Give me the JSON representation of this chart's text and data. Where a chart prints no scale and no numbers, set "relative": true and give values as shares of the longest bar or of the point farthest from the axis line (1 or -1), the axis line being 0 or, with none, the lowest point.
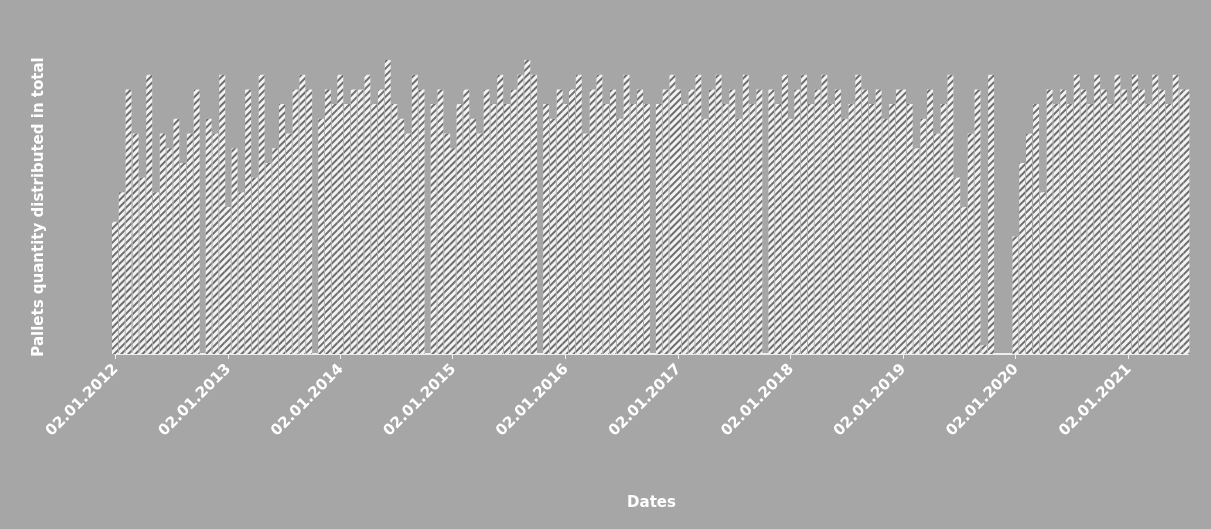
{
  "chart_data": {
    "type": "bar",
    "relative": true,
    "xlabel": "Dates",
    "ylabel": "Pallets quantity distributed in total",
    "color": "#f2f2f2",
    "grid": false,
    "xlim": [
      "2012-01-02",
      "2021-07-15"
    ],
    "xticks": [
      {
        "value": "2012-01-02",
        "label": "02.01.2012"
      },
      {
        "value": "2013-01-02",
        "label": "02.01.2013"
      },
      {
        "value": "2014-01-02",
        "label": "02.01.2014"
      },
      {
        "value": "2015-01-02",
        "label": "02.01.2015"
      },
      {
        "value": "2016-01-02",
        "label": "02.01.2016"
      },
      {
        "value": "2017-01-02",
        "label": "02.01.2017"
      },
      {
        "value": "2018-01-02",
        "label": "02.01.2018"
      },
      {
        "value": "2019-01-02",
        "label": "02.01.2019"
      },
      {
        "value": "2020-01-02",
        "label": "02.01.2020"
      },
      {
        "value": "2021-01-02",
        "label": "02.01.2021"
      }
    ],
    "x": [
      "2012-01-02",
      "2012-01-24",
      "2012-02-15",
      "2012-03-09",
      "2012-03-31",
      "2012-04-22",
      "2012-05-14",
      "2012-06-05",
      "2012-06-27",
      "2012-07-19",
      "2012-08-10",
      "2012-09-01",
      "2012-09-23",
      "2012-11-01",
      "2012-11-23",
      "2012-12-15",
      "2013-01-02",
      "2013-01-24",
      "2013-02-15",
      "2013-03-09",
      "2013-03-31",
      "2013-04-22",
      "2013-05-14",
      "2013-06-05",
      "2013-06-27",
      "2013-07-19",
      "2013-08-10",
      "2013-09-01",
      "2013-09-23",
      "2013-11-01",
      "2013-11-23",
      "2013-12-15",
      "2014-01-02",
      "2014-01-24",
      "2014-02-15",
      "2014-03-09",
      "2014-03-31",
      "2014-04-22",
      "2014-05-14",
      "2014-06-05",
      "2014-06-27",
      "2014-07-19",
      "2014-08-10",
      "2014-09-01",
      "2014-09-23",
      "2014-11-01",
      "2014-11-23",
      "2014-12-15",
      "2015-01-02",
      "2015-01-24",
      "2015-02-15",
      "2015-03-09",
      "2015-03-31",
      "2015-04-22",
      "2015-05-14",
      "2015-06-05",
      "2015-06-27",
      "2015-07-19",
      "2015-08-10",
      "2015-09-01",
      "2015-09-23",
      "2015-11-01",
      "2015-11-23",
      "2015-12-15",
      "2016-01-02",
      "2016-01-24",
      "2016-02-15",
      "2016-03-09",
      "2016-03-31",
      "2016-04-22",
      "2016-05-14",
      "2016-06-05",
      "2016-06-27",
      "2016-07-19",
      "2016-08-10",
      "2016-09-01",
      "2016-09-23",
      "2016-11-01",
      "2016-11-23",
      "2016-12-15",
      "2017-01-02",
      "2017-01-24",
      "2017-02-15",
      "2017-03-09",
      "2017-03-31",
      "2017-04-22",
      "2017-05-14",
      "2017-06-05",
      "2017-06-27",
      "2017-07-19",
      "2017-08-10",
      "2017-09-01",
      "2017-09-23",
      "2017-11-01",
      "2017-11-23",
      "2017-12-15",
      "2018-01-02",
      "2018-01-24",
      "2018-02-15",
      "2018-03-09",
      "2018-03-31",
      "2018-04-22",
      "2018-05-14",
      "2018-06-05",
      "2018-06-27",
      "2018-07-19",
      "2018-08-10",
      "2018-09-01",
      "2018-09-23",
      "2018-10-15",
      "2018-11-06",
      "2018-11-28",
      "2018-12-20",
      "2019-01-02",
      "2019-01-24",
      "2019-02-15",
      "2019-03-09",
      "2019-03-31",
      "2019-04-22",
      "2019-05-14",
      "2019-06-05",
      "2019-06-27",
      "2019-07-19",
      "2019-08-10",
      "2019-09-01",
      "2019-09-23",
      "2019-10-15",
      "2020-01-02",
      "2020-01-24",
      "2020-02-15",
      "2020-03-09",
      "2020-03-31",
      "2020-04-22",
      "2020-05-14",
      "2020-06-05",
      "2020-06-27",
      "2020-07-19",
      "2020-08-10",
      "2020-09-01",
      "2020-09-23",
      "2020-10-15",
      "2020-11-06",
      "2020-11-28",
      "2020-12-20",
      "2021-01-02",
      "2021-01-24",
      "2021-02-15",
      "2021-03-09",
      "2021-03-31",
      "2021-04-22",
      "2021-05-14",
      "2021-06-05",
      "2021-06-27",
      "2021-07-10"
    ],
    "values": [
      0.45,
      0.55,
      0.9,
      0.75,
      0.6,
      0.95,
      0.55,
      0.75,
      0.7,
      0.8,
      0.65,
      0.75,
      0.9,
      0.8,
      0.75,
      0.95,
      0.5,
      0.7,
      0.55,
      0.9,
      0.6,
      0.95,
      0.65,
      0.7,
      0.85,
      0.75,
      0.9,
      0.95,
      0.9,
      0.8,
      0.9,
      0.85,
      0.95,
      0.85,
      0.9,
      0.9,
      0.95,
      0.85,
      0.9,
      1,
      0.85,
      0.8,
      0.75,
      0.95,
      0.9,
      0.85,
      0.9,
      0.75,
      0.7,
      0.85,
      0.9,
      0.8,
      0.75,
      0.9,
      0.85,
      0.95,
      0.85,
      0.9,
      0.95,
      1,
      0.95,
      0.85,
      0.8,
      0.9,
      0.85,
      0.9,
      0.95,
      0.75,
      0.9,
      0.95,
      0.85,
      0.9,
      0.8,
      0.95,
      0.85,
      0.9,
      0.85,
      0.85,
      0.9,
      0.95,
      0.9,
      0.85,
      0.9,
      0.95,
      0.8,
      0.9,
      0.95,
      0.85,
      0.9,
      0.8,
      0.95,
      0.85,
      0.9,
      0.9,
      0.85,
      0.95,
      0.8,
      0.9,
      0.95,
      0.85,
      0.9,
      0.95,
      0.85,
      0.9,
      0.8,
      0.85,
      0.95,
      0.9,
      0.85,
      0.9,
      0.8,
      0.85,
      0.9,
      0.9,
      0.85,
      0.7,
      0.8,
      0.9,
      0.75,
      0.85,
      0.95,
      0.6,
      0.5,
      0.75,
      0.9,
      0.03,
      0.95,
      0.4,
      0.65,
      0.75,
      0.85,
      0.55,
      0.9,
      0.85,
      0.9,
      0.85,
      0.95,
      0.9,
      0.85,
      0.95,
      0.9,
      0.85,
      0.95,
      0.9,
      0.85,
      0.95,
      0.9,
      0.85,
      0.95,
      0.9,
      0.85,
      0.95,
      0.9,
      0.9
    ]
  }
}
